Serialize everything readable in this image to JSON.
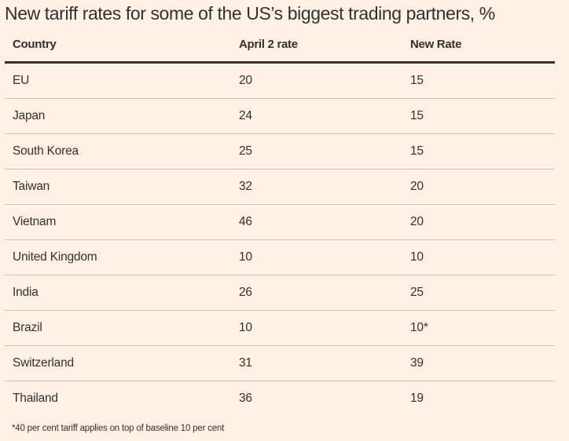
{
  "title": "New tariff rates for some of the US’s biggest trading partners, %",
  "table": {
    "headers": [
      "Country",
      "April 2 rate",
      "New Rate"
    ],
    "rows": [
      {
        "country": "EU",
        "april2": "20",
        "new": "15"
      },
      {
        "country": "Japan",
        "april2": "24",
        "new": "15"
      },
      {
        "country": "South Korea",
        "april2": "25",
        "new": "15"
      },
      {
        "country": "Taiwan",
        "april2": "32",
        "new": "20"
      },
      {
        "country": "Vietnam",
        "april2": "46",
        "new": "20"
      },
      {
        "country": "United Kingdom",
        "april2": "10",
        "new": "10"
      },
      {
        "country": "India",
        "april2": "26",
        "new": "25"
      },
      {
        "country": "Brazil",
        "april2": "10",
        "new": "10*"
      },
      {
        "country": "Switzerland",
        "april2": "31",
        "new": "39"
      },
      {
        "country": "Thailand",
        "april2": "36",
        "new": "19"
      }
    ]
  },
  "footnote": "*40 per cent tariff applies on top of baseline 10 per cent",
  "colors": {
    "background": "#FFF1E5",
    "text": "#33302E",
    "divider": "#CCC1B7"
  }
}
